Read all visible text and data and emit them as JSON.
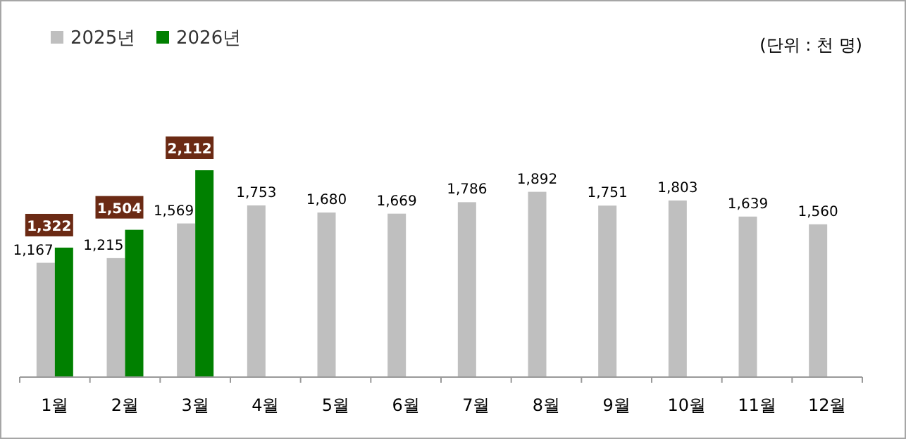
{
  "chart_data": {
    "type": "bar",
    "categories": [
      "1월",
      "2월",
      "3월",
      "4월",
      "5월",
      "6월",
      "7월",
      "8월",
      "9월",
      "10월",
      "11월",
      "12월"
    ],
    "series": [
      {
        "name": "2025년",
        "color": "#bfbfbf",
        "values": [
          1167,
          1215,
          1569,
          1753,
          1680,
          1669,
          1786,
          1892,
          1751,
          1803,
          1639,
          1560
        ],
        "value_labels": [
          "1,167",
          "1,215",
          "1,569",
          "1,753",
          "1,680",
          "1,669",
          "1,786",
          "1,892",
          "1,751",
          "1,803",
          "1,639",
          "1,560"
        ]
      },
      {
        "name": "2026년",
        "color": "#008000",
        "values": [
          1322,
          1504,
          2112,
          null,
          null,
          null,
          null,
          null,
          null,
          null,
          null,
          null
        ],
        "value_labels": [
          "1,322",
          "1,504",
          "2,112",
          null,
          null,
          null,
          null,
          null,
          null,
          null,
          null,
          null
        ]
      }
    ],
    "data_labels": true,
    "legend": "top left",
    "relative": false,
    "annotations": [
      "(단위 : 천 명)"
    ]
  }
}
